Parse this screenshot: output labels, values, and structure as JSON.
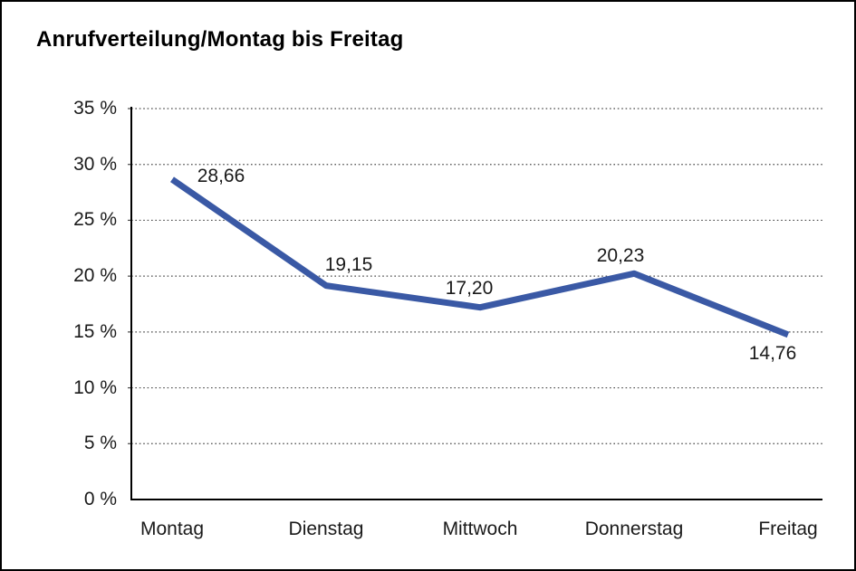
{
  "page": {
    "background": "#ffffff",
    "border_color": "#000000"
  },
  "chart_data": {
    "type": "line",
    "title": "Anrufverteilung/Montag bis Freitag",
    "categories": [
      "Montag",
      "Dienstag",
      "Mittwoch",
      "Donnerstag",
      "Freitag"
    ],
    "values": [
      28.66,
      19.15,
      17.2,
      20.23,
      14.76
    ],
    "value_labels": [
      "28,66",
      "19,15",
      "17,20",
      "20,23",
      "14,76"
    ],
    "xlabel": "",
    "ylabel": "",
    "ylim": [
      0,
      35
    ],
    "ytick_step": 5,
    "ytick_labels": [
      "0 %",
      "5 %",
      "10 %",
      "15 %",
      "20 %",
      "25 %",
      "30 %",
      "35 %"
    ],
    "grid": "horizontal-dotted",
    "legend": "none",
    "line_color": "#3a59a5",
    "grid_color": "#4a4a4a",
    "axis_color": "#000000",
    "text_color": "#1a1a1a"
  }
}
